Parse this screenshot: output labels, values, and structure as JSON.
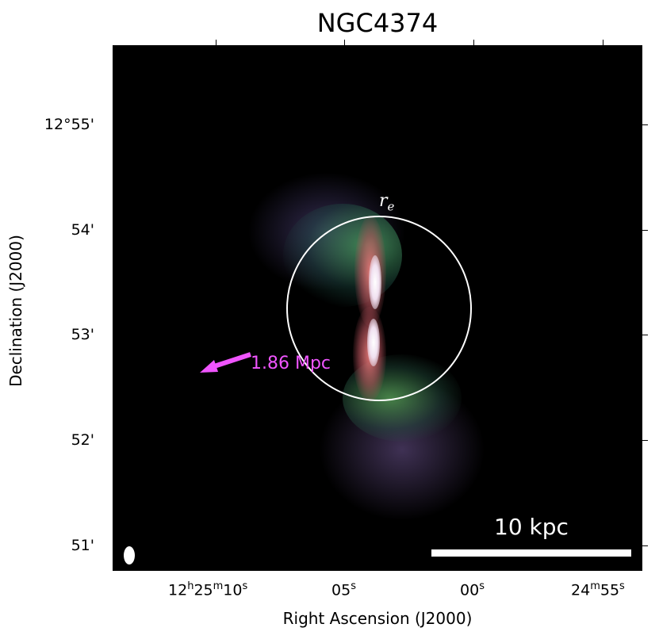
{
  "title": "NGC4374",
  "x_axis": {
    "label": "Right Ascension (J2000)",
    "ticks": [
      "12h25m10s",
      "05s",
      "00s",
      "24m55s"
    ]
  },
  "y_axis": {
    "label": "Declination (J2000)",
    "ticks": [
      "12°55'",
      "54'",
      "53'",
      "52'",
      "51'"
    ]
  },
  "annotations": {
    "effective_radius_label": "r",
    "effective_radius_sub": "e",
    "arrow_label": "1.86 Mpc",
    "arrow_color": "#f055ff",
    "scalebar_label": "10 kpc"
  },
  "colors": {
    "background": "#000000",
    "circle": "#ffffff",
    "emission_core": "#ffffff",
    "emission_mid": "#d05a6a",
    "emission_outer": "#3a8a5a",
    "emission_faint": "#5a4a7a"
  }
}
